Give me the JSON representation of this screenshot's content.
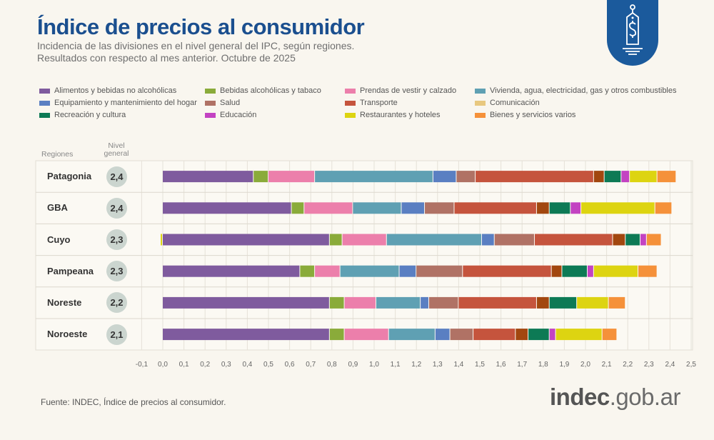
{
  "header": {
    "title": "Índice de precios al consumidor",
    "subtitle_1": "Incidencia de las divisiones en el nivel general del IPC, según regiones.",
    "subtitle_2": "Resultados con respecto al mes anterior. Octubre de 2025"
  },
  "table_headers": {
    "regions": "Regiones",
    "nivel": "Nivel general"
  },
  "footer": {
    "source": "Fuente: INDEC, Índice de precios al consumidor.",
    "brand_main": "indec",
    "brand_suffix": ".gob.ar"
  },
  "logo": {
    "icon": "price-tag-dollar-icon",
    "color": "#1b5a9c"
  },
  "chart_data": {
    "type": "bar",
    "orientation": "horizontal",
    "stacked": true,
    "title": "",
    "xlabel": "",
    "ylabel": "",
    "xlim": [
      -0.1,
      2.5
    ],
    "xticks": [
      "-0,1",
      "0,0",
      "0,1",
      "0,2",
      "0,3",
      "0,4",
      "0,5",
      "0,6",
      "0,7",
      "0,8",
      "0,9",
      "1,0",
      "1,1",
      "1,2",
      "1,3",
      "1,4",
      "1,5",
      "1,6",
      "1,7",
      "1,8",
      "1,9",
      "2,0",
      "2,1",
      "2,2",
      "2,3",
      "2,4",
      "2,5"
    ],
    "grid": true,
    "legend_position": "top",
    "categories": [
      "Patagonia",
      "GBA",
      "Cuyo",
      "Pampeana",
      "Noreste",
      "Noroeste"
    ],
    "nivel_general": [
      "2,4",
      "2,4",
      "2,3",
      "2,3",
      "2,2",
      "2,1"
    ],
    "series": [
      {
        "name": "Alimentos y bebidas no alcohólicas",
        "color": "#7f5b9e",
        "values": [
          0.43,
          0.61,
          0.79,
          0.65,
          0.79,
          0.79
        ]
      },
      {
        "name": "Bebidas alcohólicas y tabaco",
        "color": "#8aab3a",
        "values": [
          0.07,
          0.06,
          0.06,
          0.07,
          0.07,
          0.07
        ]
      },
      {
        "name": "Prendas de vestir y calzado",
        "color": "#ec7fab",
        "values": [
          0.22,
          0.23,
          0.21,
          0.12,
          0.15,
          0.21
        ]
      },
      {
        "name": "Vivienda, agua, electricidad, gas y otros combustibles",
        "color": "#5fa0b3",
        "values": [
          0.56,
          0.23,
          0.45,
          0.28,
          0.21,
          0.22
        ]
      },
      {
        "name": "Equipamiento y mantenimiento del hogar",
        "color": "#5a7fc2",
        "values": [
          0.11,
          0.11,
          0.06,
          0.08,
          0.04,
          0.07
        ]
      },
      {
        "name": "Salud",
        "color": "#b07265",
        "values": [
          0.09,
          0.14,
          0.19,
          0.22,
          0.14,
          0.11
        ]
      },
      {
        "name": "Transporte",
        "color": "#c5543d",
        "values": [
          0.56,
          0.39,
          0.37,
          0.42,
          0.37,
          0.2
        ]
      },
      {
        "name": "Comunicación",
        "color": "#e8c87f",
        "bar_color": "#a2470f",
        "values": [
          0.05,
          0.06,
          0.06,
          0.05,
          0.06,
          0.06
        ]
      },
      {
        "name": "Recreación y cultura",
        "color": "#0d7a55",
        "values": [
          0.08,
          0.1,
          0.07,
          0.12,
          0.13,
          0.1
        ]
      },
      {
        "name": "Educación",
        "color": "#c343c2",
        "values": [
          0.04,
          0.05,
          0.03,
          0.03,
          0.0,
          0.03
        ]
      },
      {
        "name": "Restaurantes y hoteles",
        "color": "#ddd411",
        "values": [
          0.13,
          0.35,
          -0.01,
          0.21,
          0.15,
          0.22
        ]
      },
      {
        "name": "Bienes y servicios varios",
        "color": "#f5913a",
        "values": [
          0.09,
          0.08,
          0.07,
          0.09,
          0.08,
          0.07
        ]
      }
    ]
  }
}
